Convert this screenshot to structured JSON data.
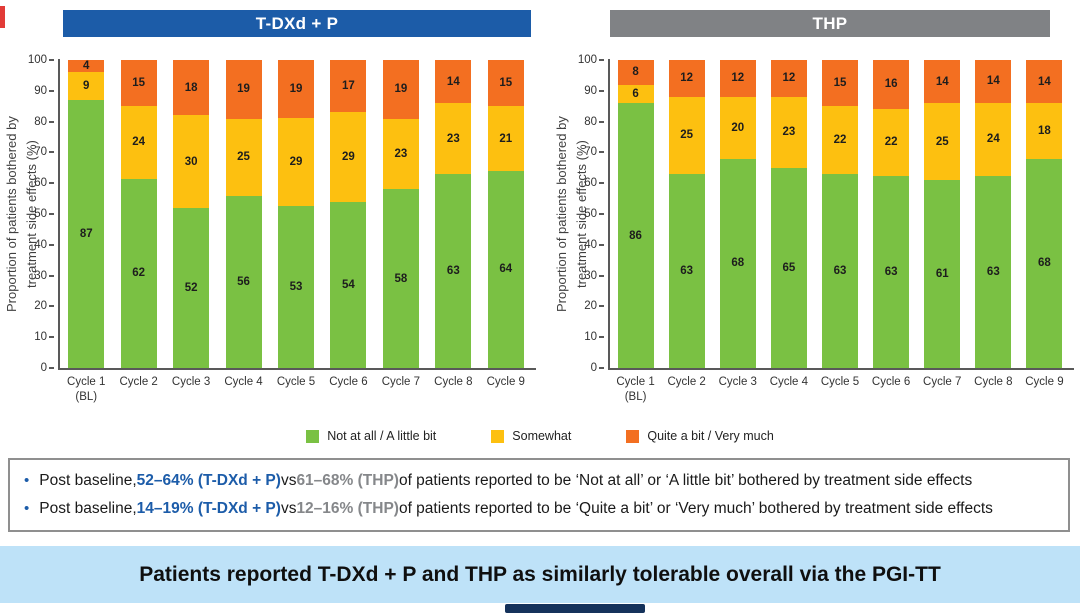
{
  "colors": {
    "green": "#7AC143",
    "yellow": "#FDC010",
    "orange": "#F36F21",
    "title_blue": "#1C5CA8",
    "title_gray": "#808285",
    "banner_blue": "#BEE2F8",
    "accent_text_blue": "#1C5CA9",
    "accent_text_gray": "#85878A"
  },
  "chart_data": [
    {
      "type": "bar",
      "stacked": true,
      "title": "T-DXd + P",
      "title_bg": "#1C5CA8",
      "ylabel": "Proportion of patients bothered by treatment side effects (%)",
      "ylabel_lines": [
        "Proportion of patients bothered by",
        "treatment side effects (%)"
      ],
      "ylim": [
        0,
        100
      ],
      "ytick_step": 10,
      "grid": false,
      "legend_position": "bottom-shared",
      "categories": [
        "Cycle 1\n(BL)",
        "Cycle 2",
        "Cycle 3",
        "Cycle 4",
        "Cycle 5",
        "Cycle 6",
        "Cycle 7",
        "Cycle 8",
        "Cycle 9"
      ],
      "series": [
        {
          "name": "Not at all / A little bit",
          "color": "#7AC143",
          "values": [
            87,
            62,
            52,
            56,
            53,
            54,
            58,
            63,
            64
          ]
        },
        {
          "name": "Somewhat",
          "color": "#FDC010",
          "values": [
            9,
            24,
            30,
            25,
            29,
            29,
            23,
            23,
            21
          ]
        },
        {
          "name": "Quite a bit / Very much",
          "color": "#F36F21",
          "values": [
            4,
            15,
            18,
            19,
            19,
            17,
            19,
            14,
            15
          ]
        }
      ]
    },
    {
      "type": "bar",
      "stacked": true,
      "title": "THP",
      "title_bg": "#808285",
      "ylabel": "Proportion of patients bothered by treatment side effects (%)",
      "ylabel_lines": [
        "Proportion of patients bothered by",
        "treatment side effects (%)"
      ],
      "ylim": [
        0,
        100
      ],
      "ytick_step": 10,
      "grid": false,
      "legend_position": "bottom-shared",
      "categories": [
        "Cycle 1\n(BL)",
        "Cycle 2",
        "Cycle 3",
        "Cycle 4",
        "Cycle 5",
        "Cycle 6",
        "Cycle 7",
        "Cycle 8",
        "Cycle 9"
      ],
      "series": [
        {
          "name": "Not at all / A little bit",
          "color": "#7AC143",
          "values": [
            86,
            63,
            68,
            65,
            63,
            63,
            61,
            63,
            68
          ]
        },
        {
          "name": "Somewhat",
          "color": "#FDC010",
          "values": [
            6,
            25,
            20,
            23,
            22,
            22,
            25,
            24,
            18
          ]
        },
        {
          "name": "Quite a bit / Very much",
          "color": "#F36F21",
          "values": [
            8,
            12,
            12,
            12,
            15,
            16,
            14,
            14,
            14
          ]
        }
      ]
    }
  ],
  "legend": {
    "items": [
      {
        "label": "Not at all / A little bit",
        "color": "#7AC143"
      },
      {
        "label": "Somewhat",
        "color": "#FDC010"
      },
      {
        "label": "Quite a bit / Very much",
        "color": "#F36F21"
      }
    ]
  },
  "bullets": [
    {
      "runs": [
        {
          "text": "Post baseline, ",
          "style": "plain"
        },
        {
          "text": "52–64% (T-DXd + P)",
          "style": "blue-bold"
        },
        {
          "text": " vs ",
          "style": "plain"
        },
        {
          "text": "61–68% (THP)",
          "style": "gray-bold"
        },
        {
          "text": " of patients reported to be ‘Not at all’ or ‘A little bit’ bothered by treatment side effects",
          "style": "plain"
        }
      ]
    },
    {
      "runs": [
        {
          "text": "Post baseline, ",
          "style": "plain"
        },
        {
          "text": "14–19% (T-DXd + P)",
          "style": "blue-bold"
        },
        {
          "text": " vs ",
          "style": "plain"
        },
        {
          "text": "12–16% (THP)",
          "style": "gray-bold"
        },
        {
          "text": " of patients reported to be ‘Quite a bit’ or ‘Very much’ bothered by treatment side effects",
          "style": "plain"
        }
      ]
    }
  ],
  "banner": {
    "text": "Patients reported T-DXd + P and THP as similarly tolerable overall via the PGI-TT",
    "bg": "#BEE2F8"
  }
}
